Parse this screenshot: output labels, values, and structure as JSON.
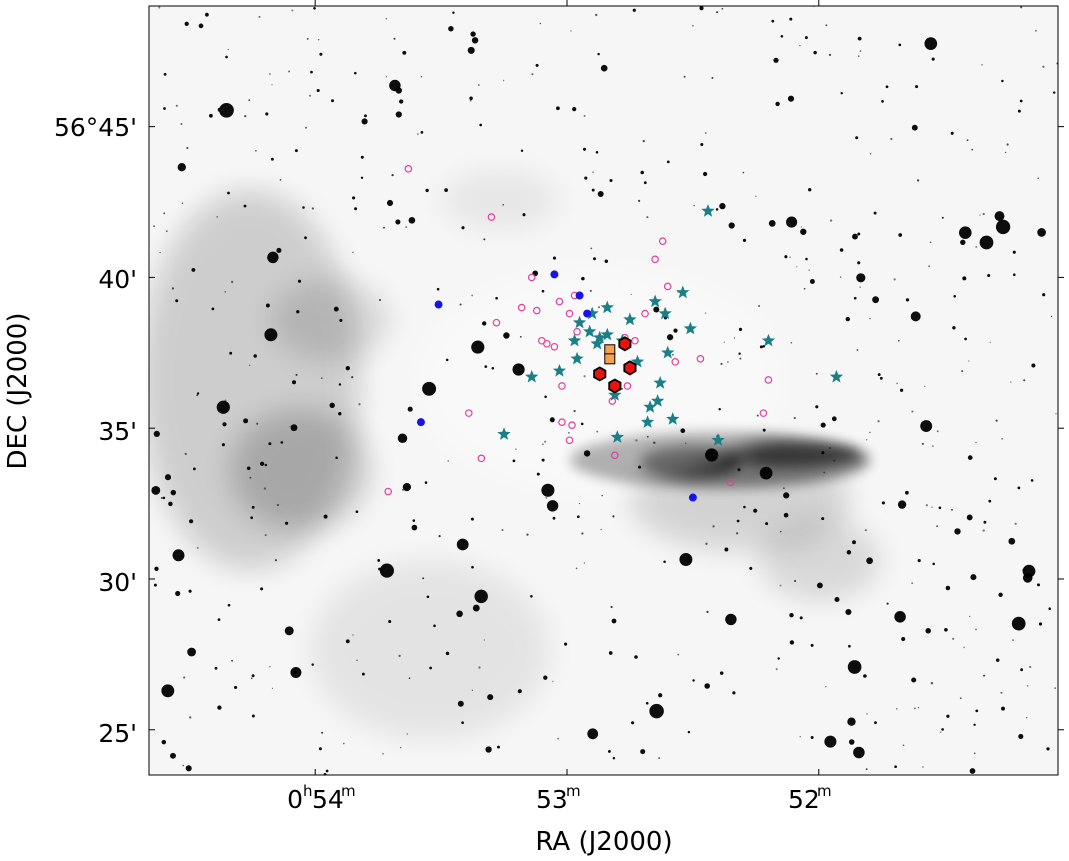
{
  "chart_data": {
    "type": "scatter",
    "title": "",
    "xlabel": "RA (J2000)",
    "ylabel": "DEC (J2000)",
    "x_ticks": [
      {
        "value_min": 54,
        "label_main": "0",
        "label_h": "h",
        "label_num": "54",
        "label_m": "m"
      },
      {
        "value_min": 53,
        "label_main": "",
        "label_h": "",
        "label_num": "53",
        "label_m": "m"
      },
      {
        "value_min": 52,
        "label_main": "",
        "label_h": "",
        "label_num": "52",
        "label_m": "m"
      }
    ],
    "y_ticks": [
      {
        "value": 45,
        "label": "56°45'"
      },
      {
        "value": 40,
        "label": "40'"
      },
      {
        "value": 35,
        "label": "35'"
      },
      {
        "value": 30,
        "label": "30'"
      },
      {
        "value": 25,
        "label": "25'"
      }
    ],
    "xlim_min": [
      54.66,
      51.05
    ],
    "ylim_arcmin": [
      23.5,
      49.0
    ],
    "background": "inverted greyscale infrared image with nebulosity and field stars",
    "series": [
      {
        "marker": "open-circle",
        "color": "#e0409a",
        "points": [
          [
            53.63,
            43.6
          ],
          [
            53.3,
            42.0
          ],
          [
            53.14,
            40.0
          ],
          [
            53.03,
            39.2
          ],
          [
            52.99,
            38.8
          ],
          [
            52.97,
            39.4
          ],
          [
            53.18,
            39.0
          ],
          [
            53.12,
            38.9
          ],
          [
            53.28,
            38.5
          ],
          [
            53.1,
            37.9
          ],
          [
            53.08,
            37.8
          ],
          [
            53.05,
            37.7
          ],
          [
            52.96,
            38.2
          ],
          [
            52.77,
            38.0
          ],
          [
            52.73,
            37.9
          ],
          [
            52.69,
            38.8
          ],
          [
            52.6,
            39.7
          ],
          [
            52.65,
            40.6
          ],
          [
            52.62,
            41.2
          ],
          [
            52.57,
            37.2
          ],
          [
            52.47,
            37.3
          ],
          [
            52.2,
            36.6
          ],
          [
            52.22,
            35.5
          ],
          [
            52.76,
            36.4
          ],
          [
            53.02,
            36.4
          ],
          [
            53.39,
            35.5
          ],
          [
            53.02,
            35.2
          ],
          [
            52.98,
            35.1
          ],
          [
            52.99,
            34.6
          ],
          [
            52.81,
            34.1
          ],
          [
            53.34,
            34.0
          ],
          [
            52.35,
            33.2
          ],
          [
            53.71,
            32.9
          ],
          [
            52.82,
            35.9
          ]
        ]
      },
      {
        "marker": "star",
        "color": "#1a7f86",
        "points": [
          [
            52.44,
            42.2
          ],
          [
            52.9,
            38.8
          ],
          [
            52.84,
            39.0
          ],
          [
            52.75,
            38.6
          ],
          [
            52.65,
            39.2
          ],
          [
            52.61,
            38.8
          ],
          [
            52.54,
            39.5
          ],
          [
            52.51,
            38.3
          ],
          [
            52.2,
            37.9
          ],
          [
            51.93,
            36.7
          ],
          [
            52.95,
            38.5
          ],
          [
            52.91,
            38.2
          ],
          [
            52.97,
            37.9
          ],
          [
            52.88,
            37.8
          ],
          [
            52.84,
            38.1
          ],
          [
            52.78,
            37.9
          ],
          [
            52.72,
            37.2
          ],
          [
            52.96,
            37.3
          ],
          [
            53.03,
            36.9
          ],
          [
            53.14,
            36.7
          ],
          [
            52.81,
            36.1
          ],
          [
            52.63,
            36.5
          ],
          [
            52.64,
            35.9
          ],
          [
            52.67,
            35.7
          ],
          [
            52.6,
            37.5
          ],
          [
            52.68,
            35.2
          ],
          [
            52.58,
            35.3
          ],
          [
            53.25,
            34.8
          ],
          [
            52.8,
            34.7
          ],
          [
            52.4,
            34.6
          ],
          [
            52.87,
            38.0
          ]
        ]
      },
      {
        "marker": "filled-circle",
        "color": "#1515e6",
        "points": [
          [
            53.51,
            39.1
          ],
          [
            53.05,
            40.1
          ],
          [
            52.95,
            39.4
          ],
          [
            52.92,
            38.8
          ],
          [
            53.58,
            35.2
          ],
          [
            52.5,
            32.7
          ],
          [
            52.75,
            37.1
          ]
        ]
      },
      {
        "marker": "red-hexagon",
        "color": "#e8120e",
        "points": [
          [
            52.77,
            37.8
          ],
          [
            52.75,
            37.0
          ],
          [
            52.87,
            36.8
          ],
          [
            52.81,
            36.4
          ]
        ]
      },
      {
        "marker": "orange-square",
        "color": "#f4a24c",
        "points": [
          [
            52.83,
            37.6
          ],
          [
            52.83,
            37.3
          ]
        ]
      }
    ]
  }
}
